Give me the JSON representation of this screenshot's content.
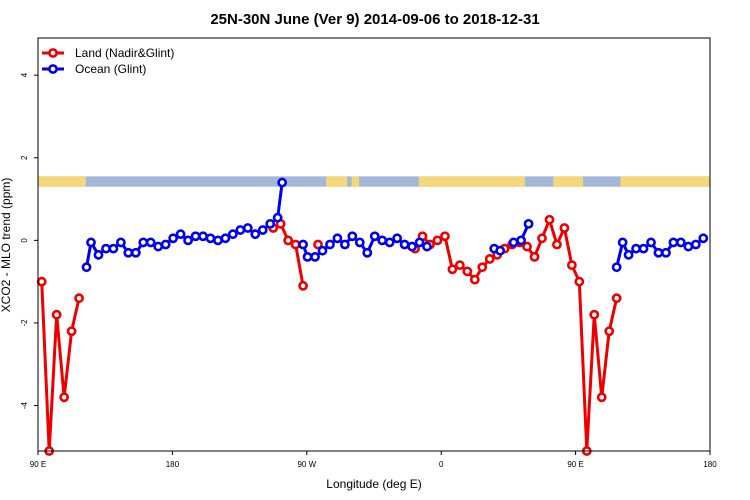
{
  "chart_data": {
    "type": "line",
    "title": "25N-30N June (Ver 9)   2014-09-06 to 2018-12-31",
    "xlabel": "Longitude (deg E)",
    "ylabel": "XCO2 - MLO trend (ppm)",
    "xlim": [
      90,
      540
    ],
    "ylim": [
      -5.1,
      4.9
    ],
    "x_ticks": [
      {
        "value": 90,
        "label": "90 E"
      },
      {
        "value": 180,
        "label": "180"
      },
      {
        "value": 270,
        "label": "90 W"
      },
      {
        "value": 360,
        "label": "0"
      },
      {
        "value": 450,
        "label": "90 E"
      },
      {
        "value": 540,
        "label": "180"
      }
    ],
    "y_ticks": [
      -4,
      -2,
      0,
      2,
      4
    ],
    "grid": false,
    "legend_position": "top-left",
    "land_band": {
      "y_range": [
        1.3,
        1.55
      ],
      "ocean_color": "#a3b8d8",
      "land_color": "#f5d87a",
      "land_segments": [
        [
          90,
          122
        ],
        [
          283,
          297
        ],
        [
          300,
          305
        ],
        [
          345,
          416
        ],
        [
          435,
          455
        ],
        [
          480,
          540
        ]
      ]
    },
    "series": [
      {
        "name": "Land (Nadir&Glint)",
        "color": "#ee0000",
        "segments": [
          [
            [
              92.5,
              -1.0
            ],
            [
              97.5,
              -5.1
            ],
            [
              102.5,
              -1.8
            ],
            [
              107.5,
              -3.8
            ],
            [
              112.5,
              -2.2
            ],
            [
              117.5,
              -1.4
            ]
          ],
          [
            [
              247.5,
              0.3
            ],
            [
              252.5,
              0.4
            ],
            [
              257.5,
              0.0
            ],
            [
              262.5,
              -0.1
            ],
            [
              267.5,
              -1.1
            ]
          ],
          [
            [
              277.5,
              -0.1
            ]
          ],
          [
            [
              342.5,
              -0.2
            ],
            [
              347.5,
              0.1
            ],
            [
              352.5,
              -0.1
            ],
            [
              357.5,
              0.0
            ],
            [
              362.5,
              0.1
            ],
            [
              367.5,
              -0.7
            ],
            [
              372.5,
              -0.6
            ],
            [
              377.5,
              -0.75
            ],
            [
              382.5,
              -0.95
            ],
            [
              387.5,
              -0.65
            ],
            [
              392.5,
              -0.45
            ],
            [
              397.5,
              -0.35
            ],
            [
              402.5,
              -0.2
            ],
            [
              407.5,
              -0.1
            ],
            [
              412.5,
              -0.05
            ],
            [
              417.5,
              -0.15
            ],
            [
              422.5,
              -0.4
            ],
            [
              427.5,
              0.05
            ],
            [
              432.5,
              0.5
            ],
            [
              437.5,
              -0.1
            ],
            [
              442.5,
              0.3
            ],
            [
              447.5,
              -0.6
            ],
            [
              452.5,
              -1.0
            ],
            [
              457.5,
              -5.1
            ],
            [
              462.5,
              -1.8
            ],
            [
              467.5,
              -3.8
            ],
            [
              472.5,
              -2.2
            ],
            [
              477.5,
              -1.4
            ]
          ]
        ]
      },
      {
        "name": "Ocean (Glint)",
        "color": "#0000ee",
        "segments": [
          [
            [
              122.5,
              -0.65
            ],
            [
              125.5,
              -0.05
            ],
            [
              130.5,
              -0.35
            ],
            [
              135.5,
              -0.2
            ],
            [
              140.5,
              -0.2
            ],
            [
              145.5,
              -0.05
            ],
            [
              150.5,
              -0.3
            ],
            [
              155.5,
              -0.3
            ],
            [
              160.5,
              -0.05
            ],
            [
              165.5,
              -0.05
            ],
            [
              170.5,
              -0.15
            ],
            [
              175.5,
              -0.1
            ],
            [
              180.5,
              0.05
            ],
            [
              185.5,
              0.15
            ],
            [
              190.5,
              0.0
            ],
            [
              195.5,
              0.1
            ],
            [
              200.5,
              0.1
            ],
            [
              205.5,
              0.05
            ],
            [
              210.5,
              0.0
            ],
            [
              215.5,
              0.05
            ],
            [
              220.5,
              0.15
            ],
            [
              225.5,
              0.25
            ],
            [
              230.5,
              0.3
            ],
            [
              235.5,
              0.15
            ],
            [
              240.5,
              0.25
            ],
            [
              245.5,
              0.4
            ],
            [
              250.5,
              0.55
            ],
            [
              253.5,
              1.4
            ]
          ],
          [
            [
              267.5,
              -0.1
            ],
            [
              270.5,
              -0.4
            ],
            [
              275.5,
              -0.4
            ],
            [
              280.5,
              -0.25
            ],
            [
              285.5,
              -0.1
            ],
            [
              290.5,
              0.05
            ],
            [
              295.5,
              -0.1
            ],
            [
              300.5,
              0.1
            ],
            [
              305.5,
              -0.05
            ],
            [
              310.5,
              -0.3
            ],
            [
              315.5,
              0.1
            ],
            [
              320.5,
              0.0
            ],
            [
              325.5,
              -0.05
            ],
            [
              330.5,
              0.05
            ],
            [
              335.5,
              -0.1
            ],
            [
              340.5,
              -0.15
            ],
            [
              345.5,
              -0.05
            ],
            [
              350.5,
              -0.15
            ]
          ],
          [
            [
              395.5,
              -0.2
            ],
            [
              399.5,
              -0.25
            ]
          ],
          [
            [
              408.5,
              -0.05
            ],
            [
              413.5,
              0.0
            ],
            [
              418.5,
              0.4
            ]
          ],
          [
            [
              477.5,
              -0.65
            ],
            [
              481.5,
              -0.05
            ],
            [
              485.5,
              -0.35
            ],
            [
              490.5,
              -0.2
            ],
            [
              495.5,
              -0.2
            ],
            [
              500.5,
              -0.05
            ],
            [
              505.5,
              -0.3
            ],
            [
              510.5,
              -0.3
            ],
            [
              515.5,
              -0.05
            ],
            [
              520.5,
              -0.05
            ],
            [
              525.5,
              -0.15
            ],
            [
              530.5,
              -0.1
            ],
            [
              535.5,
              0.05
            ]
          ]
        ]
      }
    ]
  }
}
